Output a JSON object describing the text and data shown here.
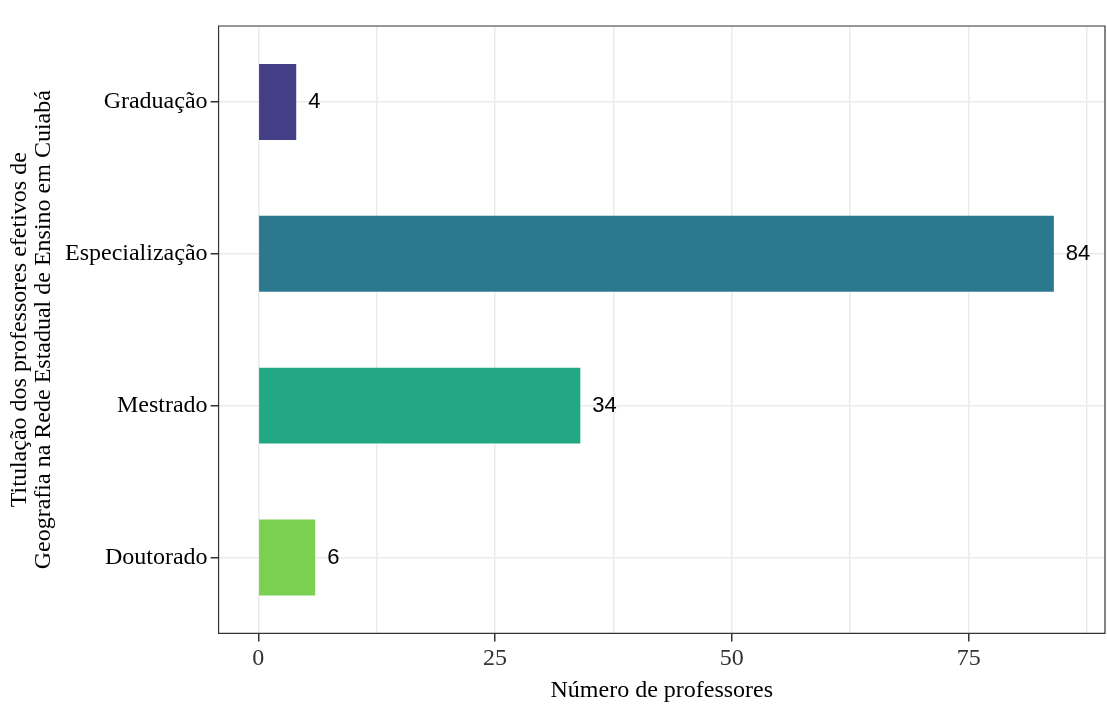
{
  "chart_data": {
    "type": "bar",
    "orientation": "horizontal",
    "xlabel": "Número de professores",
    "ylabel": "Titulação dos professores efetivos de\nGeografia na Rede Estadual de Ensino em Cuiabá",
    "categories": [
      "Graduação",
      "Especialização",
      "Mestrado",
      "Doutorado"
    ],
    "values": [
      4,
      84,
      34,
      6
    ],
    "colors": [
      "#433e85",
      "#2c788e",
      "#22a884",
      "#7ad151"
    ],
    "xlim": [
      -4.2,
      89.4
    ],
    "xticks": [
      0,
      {
        "value": 12.5,
        "label": null
      },
      25,
      {
        "value": 37.5,
        "label": null
      },
      50,
      {
        "value": 62.5,
        "label": null
      },
      75,
      {
        "value": 87.5,
        "label": null
      }
    ],
    "grid": true,
    "data_labels": true
  }
}
